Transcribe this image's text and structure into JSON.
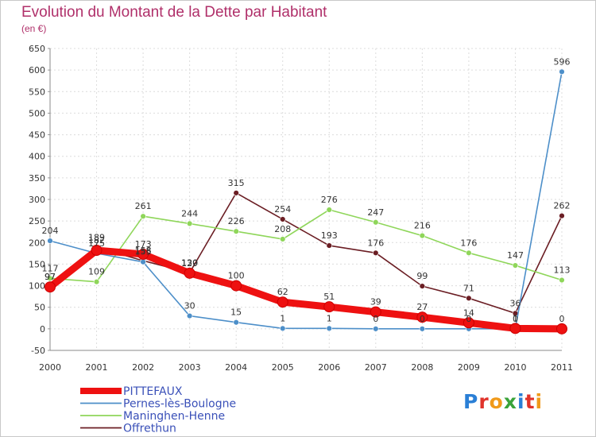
{
  "title": "Evolution du Montant de la Dette par Habitant",
  "subtitle": "(en €)",
  "logo": {
    "text": "Proxiti",
    "colors": [
      "#2a7fd6",
      "#e0332b",
      "#f09a1a",
      "#3aa33a",
      "#2a7fd6",
      "#e0332b",
      "#f09a1a"
    ]
  },
  "chart_data": {
    "type": "line",
    "title": "Evolution du Montant de la Dette par Habitant",
    "subtitle": "(en €)",
    "xlabel": "",
    "ylabel": "",
    "ylim": [
      -50,
      650
    ],
    "yticks": [
      -50,
      0,
      50,
      100,
      150,
      200,
      250,
      300,
      350,
      400,
      450,
      500,
      550,
      600,
      650
    ],
    "grid": true,
    "legend_position": "bottom-left",
    "x": [
      "2000",
      "2001",
      "2002",
      "2003",
      "2004",
      "2005",
      "2006",
      "2007",
      "2008",
      "2009",
      "2010",
      "2011"
    ],
    "series": [
      {
        "name": "Offrethun",
        "color": "#6b1e24",
        "values": [
          97,
          189,
          158,
          130,
          315,
          254,
          193,
          176,
          99,
          71,
          36,
          262
        ],
        "labels": [
          "97",
          "189",
          "158",
          "130",
          "315",
          "254",
          "193",
          "176",
          "99",
          "71",
          "36",
          "262"
        ]
      },
      {
        "name": "Maninghen-Henne",
        "color": "#8fd65a",
        "values": [
          117,
          109,
          261,
          244,
          226,
          208,
          276,
          247,
          216,
          176,
          147,
          113
        ],
        "labels": [
          "117",
          "109",
          "261",
          "244",
          "226",
          "208",
          "276",
          "247",
          "216",
          "176",
          "147",
          "113"
        ]
      },
      {
        "name": "Pernes-lès-Boulogne",
        "color": "#4d8fc9",
        "values": [
          204,
          175,
          155,
          30,
          15,
          1,
          1,
          0,
          0,
          0,
          0,
          596
        ],
        "labels": [
          "204",
          "175",
          "155",
          "30",
          "15",
          "1",
          "1",
          "0",
          "0",
          "0",
          "0",
          "596"
        ]
      },
      {
        "name": "PITTEFAUX",
        "color": "#ee1111",
        "values": [
          97,
          182,
          173,
          129,
          100,
          62,
          51,
          39,
          27,
          14,
          1,
          0
        ],
        "labels": [
          "97",
          "182",
          "173",
          "129",
          "100",
          "62",
          "51",
          "39",
          "27",
          "14",
          "1",
          "0"
        ]
      }
    ]
  }
}
